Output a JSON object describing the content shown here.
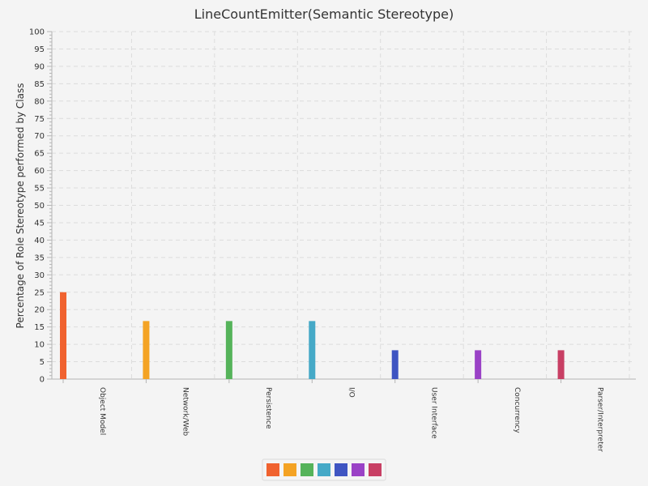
{
  "chart_data": {
    "type": "bar",
    "title": "LineCountEmitter(Semantic Stereotype)",
    "xlabel": "",
    "ylabel": "Percentage of Role Stereotype performed by Class",
    "ylim": [
      0,
      100
    ],
    "y_major_step": 5,
    "y_minor_step": 1,
    "grid": true,
    "legend_position": "bottom",
    "categories": [
      "Object Model",
      "Network/Web",
      "Persistence",
      "I/O",
      "User Interface",
      "Concurrency",
      "Parser/Interpreter"
    ],
    "values": [
      25,
      16.7,
      16.7,
      16.7,
      8.3,
      8.3,
      8.3
    ],
    "colors": [
      "#f0622f",
      "#f4a324",
      "#55b35a",
      "#45a9c7",
      "#3f55c2",
      "#9a42c6",
      "#c83f64"
    ]
  }
}
